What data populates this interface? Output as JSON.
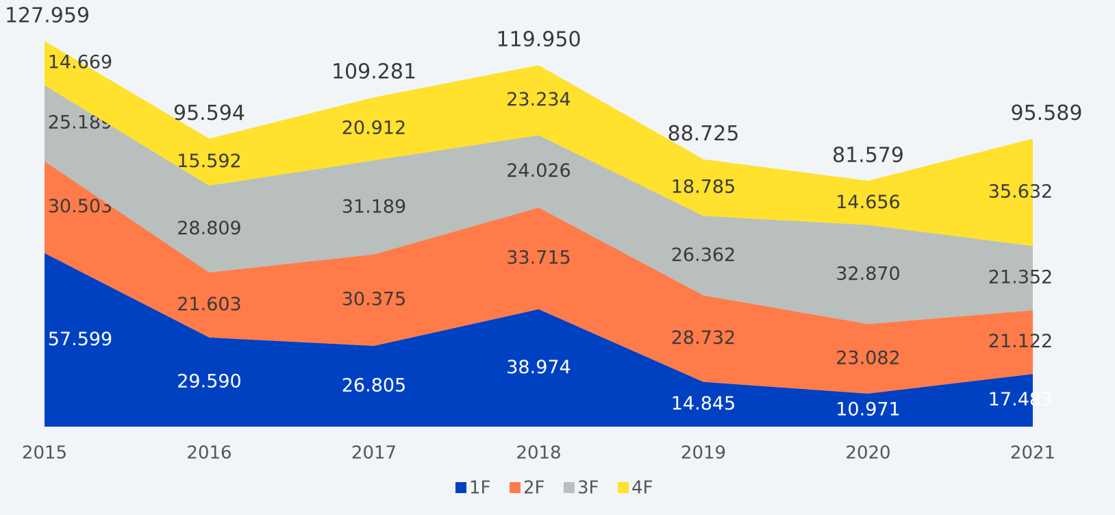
{
  "chart_data": {
    "type": "stacked_area",
    "categories": [
      "2015",
      "2016",
      "2017",
      "2018",
      "2019",
      "2020",
      "2021"
    ],
    "series": [
      {
        "name": "1F",
        "color": "#0041c2",
        "values": [
          57.599,
          29.59,
          26.805,
          38.974,
          14.845,
          10.971,
          17.483
        ],
        "value_labels": [
          "57.599",
          "29.590",
          "26.805",
          "38.974",
          "14.845",
          "10.971",
          "17.483"
        ]
      },
      {
        "name": "2F",
        "color": "#ff7b4a",
        "values": [
          30.503,
          21.603,
          30.375,
          33.715,
          28.732,
          23.082,
          21.122
        ],
        "value_labels": [
          "30.503",
          "21.603",
          "30.375",
          "33.715",
          "28.732",
          "23.082",
          "21.122"
        ]
      },
      {
        "name": "3F",
        "color": "#b9bfbd",
        "values": [
          25.189,
          28.809,
          31.189,
          24.026,
          26.362,
          32.87,
          21.352
        ],
        "value_labels": [
          "25.189",
          "28.809",
          "31.189",
          "24.026",
          "26.362",
          "32.870",
          "21.352"
        ]
      },
      {
        "name": "4F",
        "color": "#ffe12e",
        "values": [
          14.669,
          15.592,
          20.912,
          23.234,
          18.785,
          14.656,
          35.632
        ],
        "value_labels": [
          "14.669",
          "15.592",
          "20.912",
          "23.234",
          "18.785",
          "14.656",
          "35.632"
        ]
      }
    ],
    "totals": [
      127.959,
      95.594,
      109.281,
      119.95,
      88.725,
      81.579,
      95.589
    ],
    "total_labels": [
      "127.959",
      "95.594",
      "109.281",
      "119.950",
      "88.725",
      "81.579",
      "95.589"
    ]
  }
}
